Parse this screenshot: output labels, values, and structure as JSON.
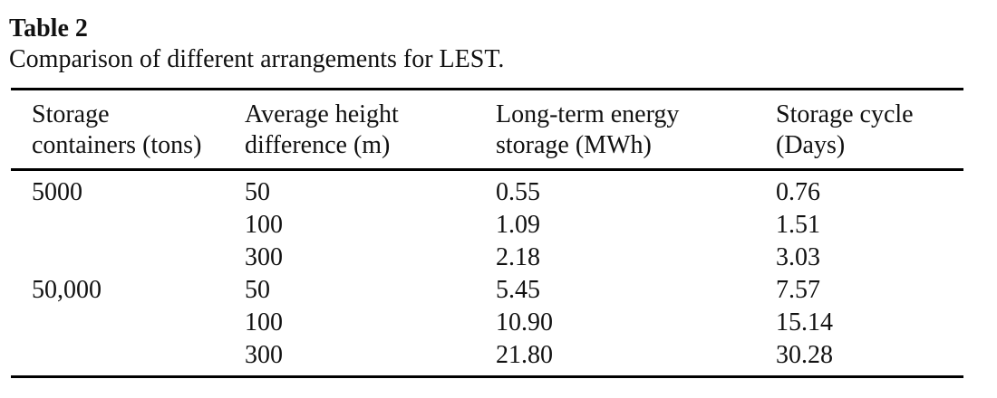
{
  "table": {
    "title": "Table 2",
    "caption": "Comparison of different arrangements for LEST.",
    "columns": [
      {
        "label": "Storage containers (tons)",
        "line1": "Storage",
        "line2": "containers (tons)"
      },
      {
        "label": "Average height difference (m)",
        "line1": "Average height",
        "line2": "difference (m)"
      },
      {
        "label": "Long-term energy storage (MWh)",
        "line1": "Long-term energy",
        "line2": "storage (MWh)"
      },
      {
        "label": "Storage cycle (Days)",
        "line1": "Storage cycle",
        "line2": "(Days)"
      }
    ],
    "rows": [
      [
        "5000",
        "50",
        "0.55",
        "0.76"
      ],
      [
        "",
        "100",
        "1.09",
        "1.51"
      ],
      [
        "",
        "300",
        "2.18",
        "3.03"
      ],
      [
        "50,000",
        "50",
        "5.45",
        "7.57"
      ],
      [
        "",
        "100",
        "10.90",
        "15.14"
      ],
      [
        "",
        "300",
        "21.80",
        "30.28"
      ]
    ]
  },
  "chart_data": {
    "type": "table",
    "title": "Table 2. Comparison of different arrangements for LEST.",
    "columns": [
      "Storage containers (tons)",
      "Average height difference (m)",
      "Long-term energy storage (MWh)",
      "Storage cycle (Days)"
    ],
    "rows": [
      [
        5000,
        50,
        0.55,
        0.76
      ],
      [
        5000,
        100,
        1.09,
        1.51
      ],
      [
        5000,
        300,
        2.18,
        3.03
      ],
      [
        50000,
        50,
        5.45,
        7.57
      ],
      [
        50000,
        100,
        10.9,
        15.14
      ],
      [
        50000,
        300,
        21.8,
        30.28
      ]
    ]
  },
  "style": {
    "background_color": "#ffffff",
    "text_color": "#111111",
    "rule_color": "#000000"
  }
}
